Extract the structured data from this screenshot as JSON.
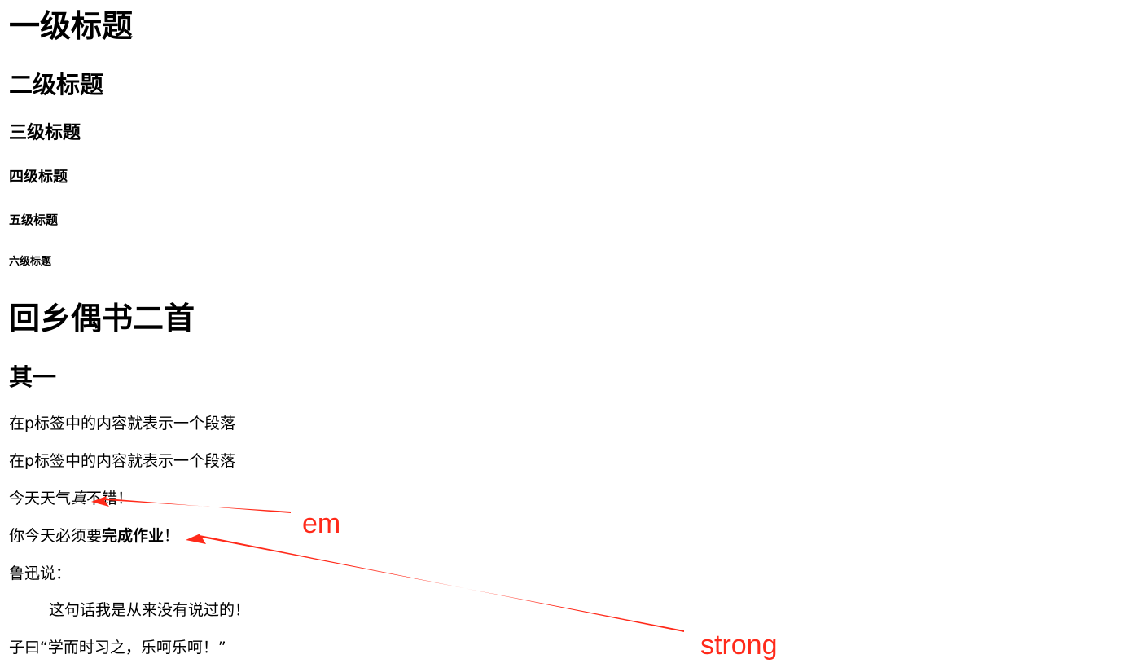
{
  "headings": {
    "h1": "一级标题",
    "h2": "二级标题",
    "h3": "三级标题",
    "h4": "四级标题",
    "h5": "五级标题",
    "h6": "六级标题"
  },
  "poem": {
    "title": "回乡偶书二首",
    "subtitle": "其一"
  },
  "paragraphs": {
    "p1": "在p标签中的内容就表示一个段落",
    "p2": "在p标签中的内容就表示一个段落",
    "weather_pre": "今天天气",
    "weather_em": "真",
    "weather_post": "不错！",
    "hw_pre": "你今天必须要",
    "hw_strong": "完成作业",
    "hw_post": "！",
    "luxun": "鲁迅说：",
    "quote": "这句话我是从来没有说过的！",
    "confucius": "子曰“学而时习之，乐呵乐呵！”"
  },
  "annotations": {
    "em_label": "em",
    "strong_label": "strong",
    "color": "#ff2a1a"
  }
}
